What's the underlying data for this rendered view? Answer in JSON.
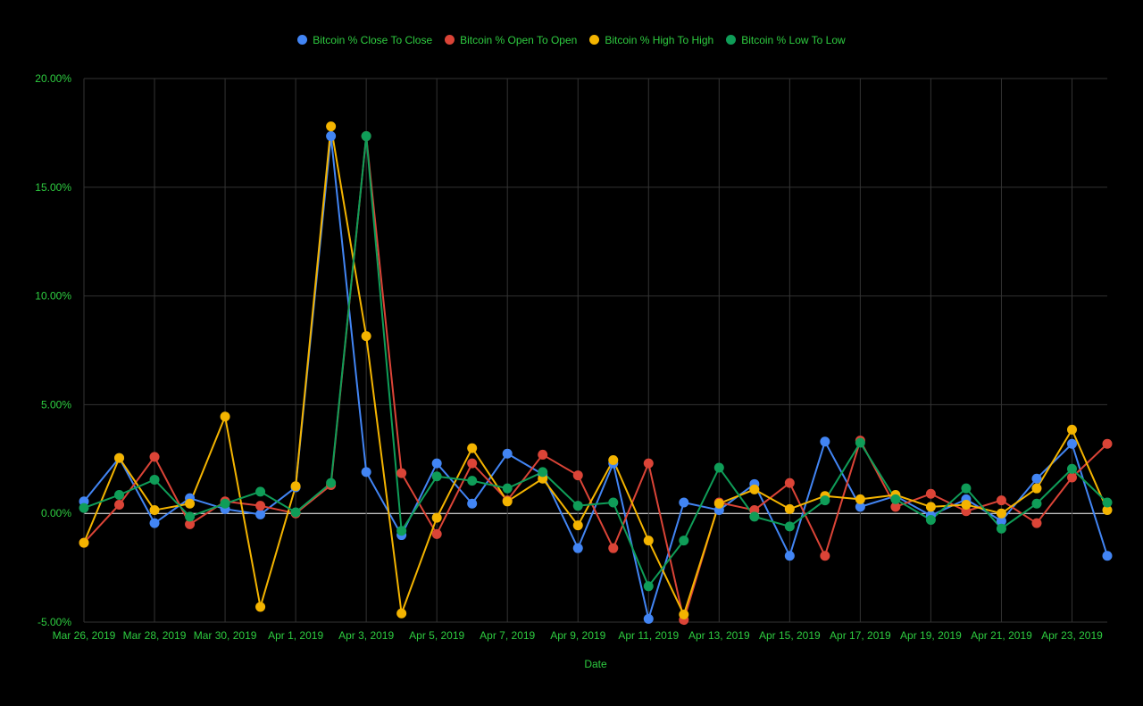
{
  "chart_data": {
    "type": "line",
    "xlabel": "Date",
    "ylabel": "",
    "ylim": [
      -5,
      20
    ],
    "y_ticks": [
      "20.00%",
      "15.00%",
      "10.00%",
      "5.00%",
      "0.00%",
      "-5.00%"
    ],
    "y_tick_values": [
      20,
      15,
      10,
      5,
      0,
      -5
    ],
    "x_tick_labels": [
      "Mar 26, 2019",
      "Mar 28, 2019",
      "Mar 30, 2019",
      "Apr 1, 2019",
      "Apr 3, 2019",
      "Apr 5, 2019",
      "Apr 7, 2019",
      "Apr 9, 2019",
      "Apr 11, 2019",
      "Apr 13, 2019",
      "Apr 15, 2019",
      "Apr 17, 2019",
      "Apr 19, 2019",
      "Apr 21, 2019",
      "Apr 23, 2019"
    ],
    "x": [
      "Mar 26, 2019",
      "Mar 27, 2019",
      "Mar 28, 2019",
      "Mar 29, 2019",
      "Mar 30, 2019",
      "Mar 31, 2019",
      "Apr 1, 2019",
      "Apr 2, 2019",
      "Apr 3, 2019",
      "Apr 4, 2019",
      "Apr 5, 2019",
      "Apr 6, 2019",
      "Apr 7, 2019",
      "Apr 8, 2019",
      "Apr 9, 2019",
      "Apr 10, 2019",
      "Apr 11, 2019",
      "Apr 12, 2019",
      "Apr 13, 2019",
      "Apr 14, 2019",
      "Apr 15, 2019",
      "Apr 16, 2019",
      "Apr 17, 2019",
      "Apr 18, 2019",
      "Apr 19, 2019",
      "Apr 20, 2019",
      "Apr 21, 2019",
      "Apr 22, 2019",
      "Apr 23, 2019",
      "Apr 24, 2019"
    ],
    "grid": true,
    "legend_position": "top",
    "series": [
      {
        "name": "Bitcoin % Close To Close",
        "color": "#4285f4",
        "values": [
          0.55,
          2.55,
          -0.45,
          0.7,
          0.2,
          -0.05,
          1.2,
          17.35,
          1.9,
          -1.0,
          2.3,
          0.45,
          2.75,
          1.8,
          -1.6,
          2.3,
          -4.85,
          0.5,
          0.15,
          1.35,
          -1.95,
          3.3,
          0.3,
          0.8,
          -0.1,
          0.65,
          -0.35,
          1.6,
          3.2,
          -1.95
        ]
      },
      {
        "name": "Bitcoin % Open To Open",
        "color": "#db4437",
        "values": [
          -1.35,
          0.4,
          2.6,
          -0.5,
          0.55,
          0.35,
          0.0,
          1.3,
          17.35,
          1.85,
          -0.95,
          2.3,
          0.6,
          2.7,
          1.75,
          -1.6,
          2.3,
          -4.9,
          0.5,
          0.15,
          1.4,
          -1.95,
          3.35,
          0.3,
          0.9,
          0.1,
          0.6,
          -0.45,
          1.65,
          3.2
        ]
      },
      {
        "name": "Bitcoin % High To High",
        "color": "#f4b400",
        "values": [
          -1.35,
          2.55,
          0.15,
          0.45,
          4.45,
          -4.3,
          1.25,
          17.8,
          8.15,
          -4.6,
          -0.2,
          3.0,
          0.55,
          1.6,
          -0.55,
          2.45,
          -1.25,
          -4.65,
          0.45,
          1.1,
          0.2,
          0.8,
          0.65,
          0.85,
          0.3,
          0.4,
          0.0,
          1.15,
          3.85,
          0.15
        ]
      },
      {
        "name": "Bitcoin % Low To Low",
        "color": "#0f9d58",
        "values": [
          0.25,
          0.85,
          1.55,
          -0.15,
          0.45,
          1.0,
          0.05,
          1.4,
          17.35,
          -0.8,
          1.7,
          1.5,
          1.15,
          1.9,
          0.35,
          0.5,
          -3.35,
          -1.25,
          2.1,
          -0.15,
          -0.6,
          0.6,
          3.25,
          0.65,
          -0.3,
          1.15,
          -0.7,
          0.45,
          2.05,
          0.5
        ]
      }
    ]
  }
}
